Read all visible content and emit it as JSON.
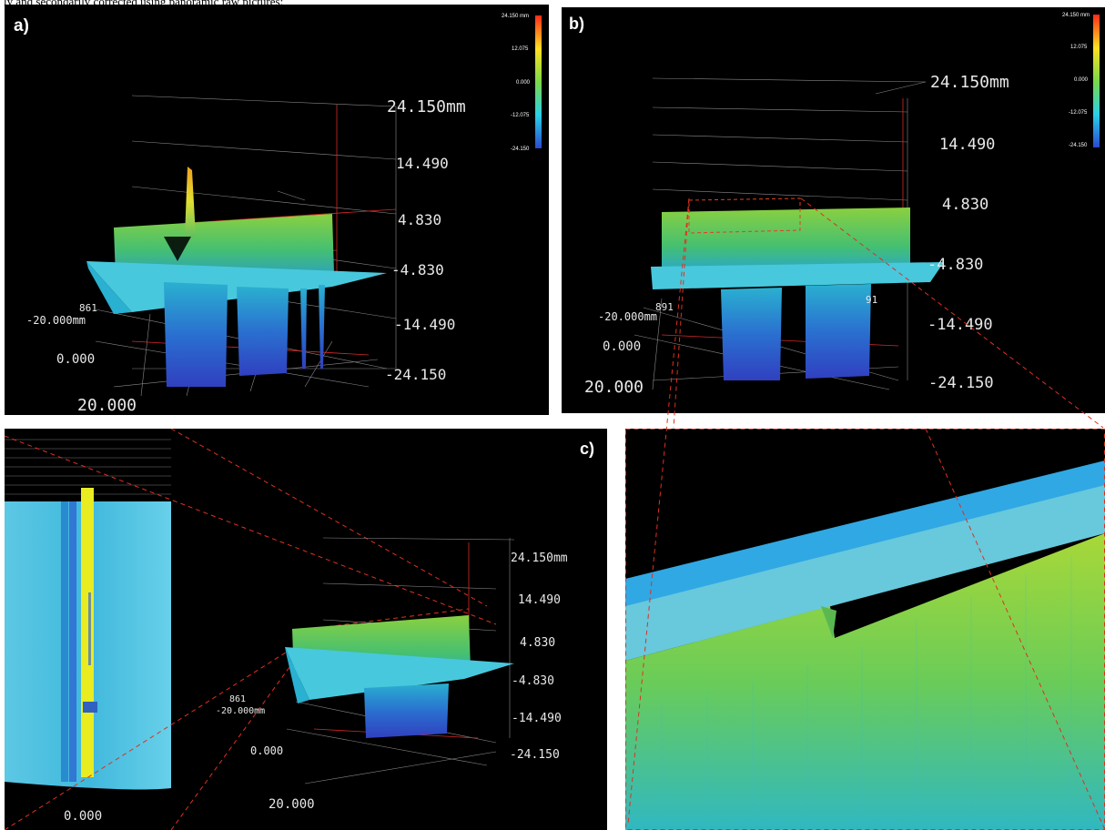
{
  "caption": "ly and secondarily corrected using panoramic raw pictures:",
  "colorbar": {
    "ticks": [
      "24.150 mm",
      "12.075",
      "0.000",
      "-12.075",
      "-24.150"
    ],
    "colors": [
      "#ff2a1a",
      "#ffe020",
      "#7ad848",
      "#2ad0e6",
      "#2a4ad0"
    ]
  },
  "panel_a": {
    "label": "a)",
    "z_ticks": [
      "24.150mm",
      "14.490",
      "4.830",
      "-4.830",
      "-14.490",
      "-24.150"
    ],
    "x_tick": "861",
    "y_ticks": [
      "-20.000mm",
      "0.000",
      "20.000"
    ]
  },
  "panel_b": {
    "label": "b)",
    "z_ticks": [
      "24.150mm",
      "14.490",
      "4.830",
      "-4.830",
      "-14.490",
      "-24.150"
    ],
    "x_ticks": [
      "891",
      "91"
    ],
    "y_ticks": [
      "-20.000mm",
      "0.000",
      "20.000"
    ]
  },
  "panel_c": {
    "label": "c)",
    "z_ticks": [
      "24.150mm",
      "14.490",
      "4.830",
      "-4.830",
      "-14.490",
      "-24.150"
    ],
    "x_tick": "861",
    "y_ticks": [
      "-20.000mm",
      "0.000",
      "20.000"
    ],
    "inset_tick": "0.000"
  }
}
